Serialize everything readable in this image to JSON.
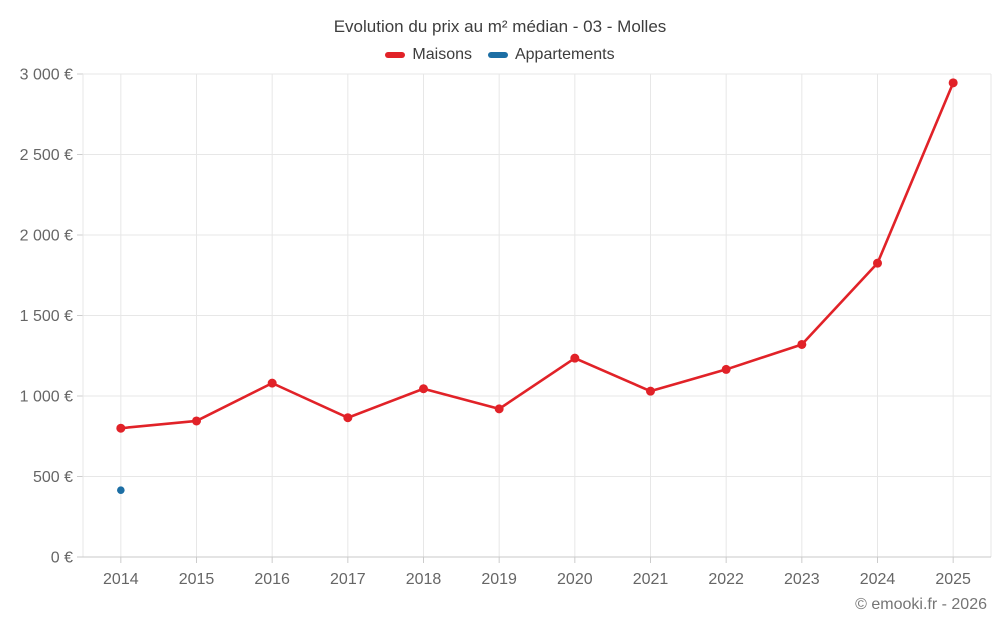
{
  "chart": {
    "title": "Evolution du prix au m² médian - 03 - Molles",
    "footer": "© emooki.fr - 2026"
  },
  "chart_data": {
    "type": "line",
    "title": "Evolution du prix au m² médian - 03 - Molles",
    "categories": [
      "2014",
      "2015",
      "2016",
      "2017",
      "2018",
      "2019",
      "2020",
      "2021",
      "2022",
      "2023",
      "2024",
      "2025"
    ],
    "series": [
      {
        "name": "Maisons",
        "color": "#e12228",
        "values": [
          800,
          845,
          1080,
          865,
          1045,
          920,
          1235,
          1030,
          1165,
          1320,
          1825,
          2945
        ]
      },
      {
        "name": "Appartements",
        "color": "#1c6ea4",
        "values": [
          415,
          null,
          null,
          null,
          null,
          null,
          null,
          null,
          null,
          null,
          null,
          null
        ]
      }
    ],
    "xlabel": "",
    "ylabel": "",
    "ylim": [
      0,
      3000
    ],
    "ytick_step": 500,
    "ytick_suffix": " €",
    "grid": true,
    "legend_position": "top",
    "colors": {
      "gridline": "#e7e7e7",
      "axis_line": "#c9c9c9",
      "tick": "#cccccc",
      "axis_text": "#666666"
    }
  }
}
